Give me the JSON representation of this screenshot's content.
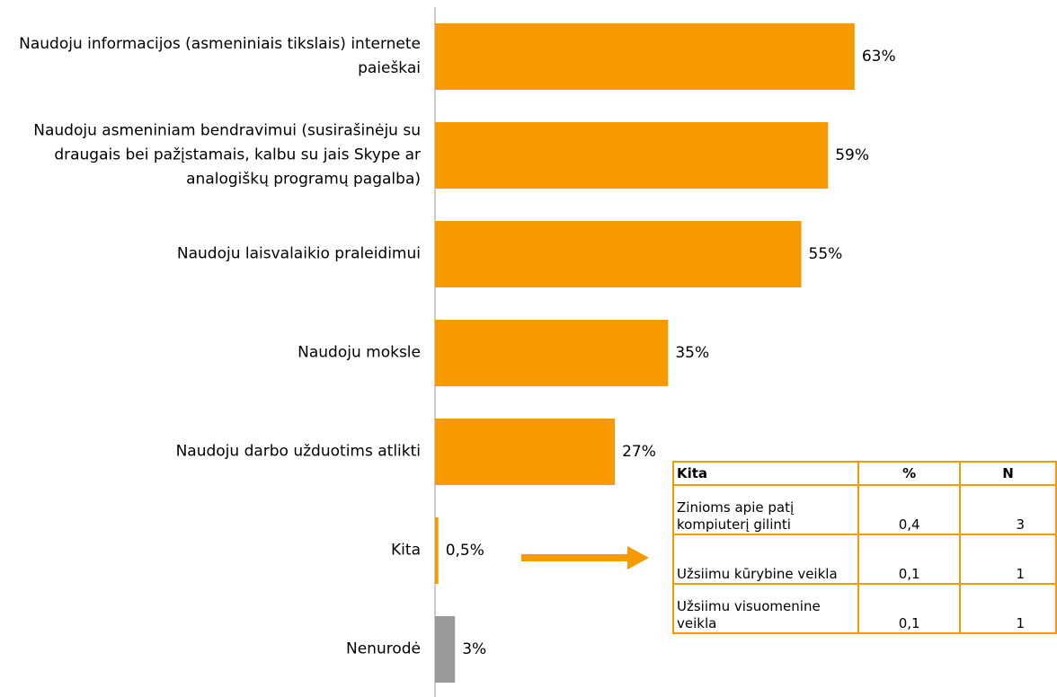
{
  "chart_data": {
    "type": "bar",
    "orientation": "horizontal",
    "categories": [
      "Naudoju informacijos (asmeniniais tikslais) internete paieškai",
      "Naudoju asmeniniam bendravimui (susirašinėju su draugais bei pažįstamais, kalbu su jais Skype ar analogiškų programų pagalba)",
      "Naudoju laisvalaikio praleidimui",
      "Naudoju moksle",
      "Naudoju darbo užduotims atlikti",
      "Kita",
      "Nenurodė"
    ],
    "values": [
      63,
      59,
      55,
      35,
      27,
      0.5,
      3
    ],
    "value_labels": [
      "63%",
      "59%",
      "55%",
      "35%",
      "27%",
      "0,5%",
      "3%"
    ],
    "colors": [
      "#f79a00",
      "#f79a00",
      "#f79a00",
      "#f79a00",
      "#f79a00",
      "#f79a00",
      "#999999"
    ],
    "table": {
      "header": [
        "Kita",
        "%",
        "N"
      ],
      "rows": [
        [
          "Zinioms apie patį kompiuterį gilinti",
          "0,4",
          3
        ],
        [
          "Užsiimu kūrybine veikla",
          "0,1",
          1
        ],
        [
          "Užsiimu visuomenine veikla",
          "0,1",
          1
        ]
      ]
    }
  }
}
